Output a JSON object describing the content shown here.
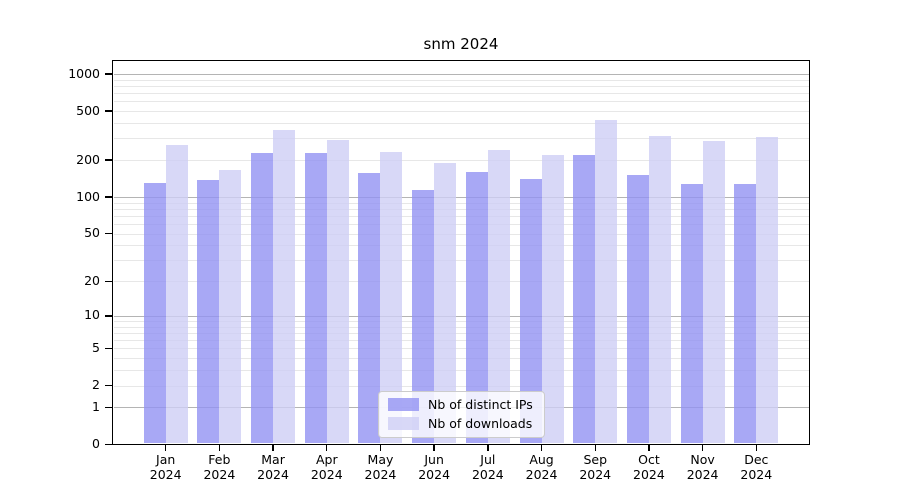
{
  "figure": {
    "title": "snm 2024",
    "background": "#ffffff"
  },
  "legend": {
    "position": "lower center",
    "items": [
      {
        "label": "Nb of distinct IPs",
        "color": "#9292f2",
        "alpha": 0.8
      },
      {
        "label": "Nb of downloads",
        "color": "#cecef5",
        "alpha": 0.8
      }
    ]
  },
  "colors": {
    "bar_distinct_ips": "#9292f2",
    "bar_downloads": "#cecef5",
    "bar_alpha": 0.8,
    "grid_major": "#b4b4b4",
    "grid_minor": "#e7e7e7",
    "axis": "#000000",
    "legend_border": "#cccccc",
    "text": "#000000"
  },
  "chart_data": {
    "type": "bar",
    "title": "snm 2024",
    "categories": [
      "Jan 2024",
      "Feb 2024",
      "Mar 2024",
      "Apr 2024",
      "May 2024",
      "Jun 2024",
      "Jul 2024",
      "Aug 2024",
      "Sep 2024",
      "Oct 2024",
      "Nov 2024",
      "Dec 2024"
    ],
    "series": [
      {
        "name": "Nb of distinct IPs",
        "values": [
          130,
          138,
          230,
          230,
          158,
          115,
          160,
          140,
          222,
          152,
          128,
          128
        ]
      },
      {
        "name": "Nb of downloads",
        "values": [
          265,
          165,
          350,
          290,
          235,
          190,
          242,
          220,
          425,
          315,
          286,
          310
        ]
      }
    ],
    "y_scale": "log10(value+1)",
    "y_ticks": [
      0,
      1,
      2,
      5,
      10,
      20,
      50,
      100,
      200,
      500,
      1000
    ],
    "y_ticks_dark_grid": [
      1,
      10,
      100,
      1000
    ],
    "ylim": [
      0,
      1270
    ],
    "xlabel": "",
    "ylabel": "",
    "grid": true,
    "legend_position": "lower center"
  }
}
